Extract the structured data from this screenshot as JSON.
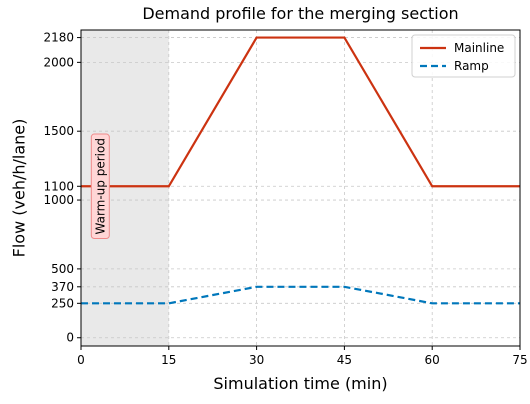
{
  "chart_data": {
    "type": "line",
    "title": "Demand profile for the merging section",
    "xlabel": "Simulation time (min)",
    "ylabel": "Flow (veh/h/lane)",
    "xlim": [
      0,
      75
    ],
    "ylim": [
      -60,
      2235
    ],
    "xticks": [
      0,
      15,
      30,
      45,
      60,
      75
    ],
    "yticks": [
      0,
      250,
      370,
      500,
      1000,
      1100,
      1500,
      2000,
      2180
    ],
    "grid": true,
    "legend_position": "top-right",
    "series": [
      {
        "name": "Mainline",
        "style": "solid",
        "color": "#cc3311",
        "x": [
          0,
          15,
          30,
          45,
          60,
          75
        ],
        "y": [
          1100,
          1100,
          2180,
          2180,
          1100,
          1100
        ]
      },
      {
        "name": "Ramp",
        "style": "dashed",
        "color": "#0077bb",
        "x": [
          0,
          15,
          30,
          45,
          60,
          75
        ],
        "y": [
          250,
          250,
          370,
          370,
          250,
          250
        ]
      }
    ],
    "shaded_region": {
      "x_start": 0,
      "x_end": 15,
      "label": "Warm-up period",
      "color": "#e9e9e9"
    },
    "annotation_colors": {
      "box_fill": "#ffd6d6",
      "box_stroke": "#f08a8a"
    }
  }
}
